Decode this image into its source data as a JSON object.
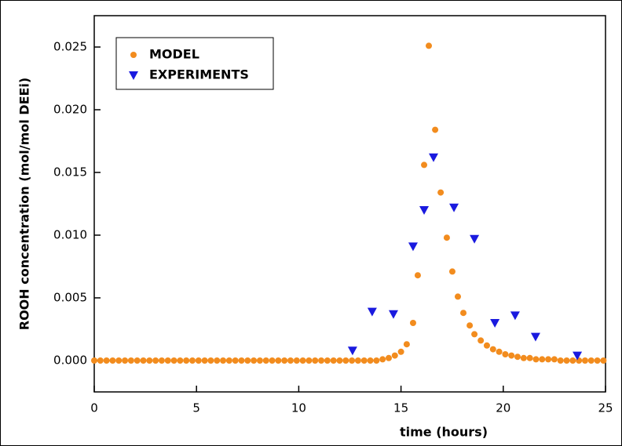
{
  "chart_data": {
    "type": "scatter",
    "xlabel": "time (hours)",
    "ylabel": "ROOH concentration (mol/mol DEEi)",
    "xlim": [
      0,
      25
    ],
    "xticks": [
      0,
      5,
      10,
      15,
      20,
      25
    ],
    "ylim": [
      -0.0025,
      0.0275
    ],
    "yticks": [
      {
        "value": 0,
        "label": "0.000"
      },
      {
        "value": 0.005,
        "label": "0.005"
      },
      {
        "value": 0.01,
        "label": "0.010"
      },
      {
        "value": 0.015,
        "label": "0.015"
      },
      {
        "value": 0.02,
        "label": "0.020"
      },
      {
        "value": 0.025,
        "label": "0.025"
      }
    ],
    "legend": "upper left",
    "series": [
      {
        "name": "MODEL",
        "color": "#f28c1e",
        "marker": "circle",
        "x": [
          0,
          0.3,
          0.6,
          0.9,
          1.2,
          1.5,
          1.8,
          2.1,
          2.4,
          2.7,
          3,
          3.3,
          3.6,
          3.9,
          4.2,
          4.5,
          4.8,
          5.1,
          5.4,
          5.7,
          6,
          6.3,
          6.6,
          6.9,
          7.2,
          7.5,
          7.8,
          8.1,
          8.4,
          8.7,
          9,
          9.3,
          9.6,
          9.9,
          10.2,
          10.5,
          10.8,
          11.1,
          11.4,
          11.7,
          12,
          12.3,
          12.6,
          12.9,
          13.2,
          13.5,
          13.8,
          14.1,
          14.4,
          14.7,
          15.0,
          15.28,
          15.59,
          15.82,
          16.13,
          16.36,
          16.67,
          16.94,
          17.24,
          17.51,
          17.78,
          18.05,
          18.36,
          18.59,
          18.9,
          19.2,
          19.5,
          19.8,
          20.1,
          20.4,
          20.7,
          21.0,
          21.3,
          21.6,
          21.9,
          22.2,
          22.5,
          22.8,
          23.1,
          23.4,
          23.7,
          24,
          24.3,
          24.6,
          24.9
        ],
        "values": [
          0,
          0,
          0,
          0,
          0,
          0,
          0,
          0,
          0,
          0,
          0,
          0,
          0,
          0,
          0,
          0,
          0,
          0,
          0,
          0,
          0,
          0,
          0,
          0,
          0,
          0,
          0,
          0,
          0,
          0,
          0,
          0,
          0,
          0,
          0,
          0,
          0,
          0,
          0,
          0,
          0,
          0,
          0,
          0,
          0,
          0,
          0,
          0.0001,
          0.0002,
          0.0004,
          0.0007,
          0.0013,
          0.003,
          0.0068,
          0.0156,
          0.0251,
          0.0184,
          0.0134,
          0.0098,
          0.0071,
          0.0051,
          0.0038,
          0.0028,
          0.0021,
          0.0016,
          0.0012,
          0.0009,
          0.0007,
          0.0005,
          0.0004,
          0.0003,
          0.0002,
          0.0002,
          0.0001,
          0.0001,
          0.0001,
          0.0001,
          0,
          0,
          0,
          0,
          0,
          0,
          0,
          0
        ]
      },
      {
        "name": "EXPERIMENTS",
        "color": "#1a1adf",
        "marker": "triangle-down",
        "x": [
          12.63,
          13.59,
          14.63,
          15.59,
          16.13,
          16.59,
          17.59,
          18.59,
          19.59,
          20.58,
          21.58,
          23.62
        ],
        "values": [
          0.0008,
          0.0039,
          0.0037,
          0.0091,
          0.012,
          0.0162,
          0.0122,
          0.0097,
          0.003,
          0.0036,
          0.0019,
          0.0004
        ]
      }
    ]
  }
}
